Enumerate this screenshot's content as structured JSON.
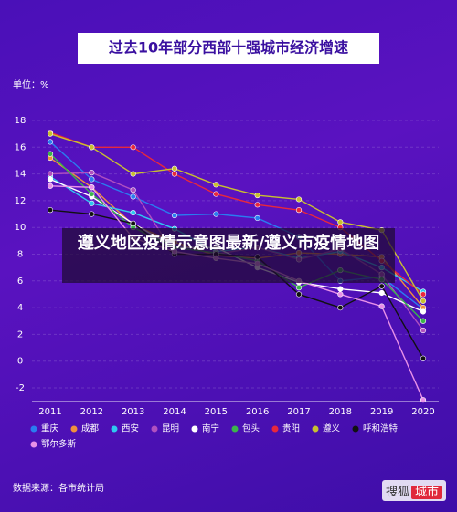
{
  "chart_data": {
    "type": "line",
    "title": "过去10年部分西部十强城市经济增速",
    "unit_label": "单位：%",
    "source": "数据来源：各市统计局",
    "x": [
      "2011",
      "2012",
      "2013",
      "2014",
      "2015",
      "2016",
      "2017",
      "2018",
      "2019",
      "2020"
    ],
    "ylim": [
      -3,
      19
    ],
    "yticks": [
      -2,
      0,
      2,
      4,
      6,
      8,
      10,
      12,
      14,
      16,
      18
    ],
    "grid": true,
    "series": [
      {
        "name": "重庆",
        "color": "#2a7cf0",
        "values": [
          16.4,
          13.6,
          12.3,
          10.9,
          11.0,
          10.7,
          9.3,
          6.0,
          6.3,
          3.9
        ]
      },
      {
        "name": "成都",
        "color": "#f0903c",
        "values": [
          15.2,
          13.0,
          10.2,
          8.9,
          7.9,
          7.7,
          8.1,
          8.0,
          7.8,
          4.0
        ]
      },
      {
        "name": "西安",
        "color": "#2ec8f0",
        "values": [
          13.8,
          11.8,
          11.1,
          9.9,
          8.2,
          8.5,
          7.7,
          8.2,
          7.0,
          5.2
        ]
      },
      {
        "name": "昆明",
        "color": "#b050c0",
        "values": [
          14.0,
          14.1,
          12.8,
          8.0,
          8.0,
          8.5,
          7.6,
          8.4,
          6.5,
          2.3
        ]
      },
      {
        "name": "南宁",
        "color": "#ffffff",
        "values": [
          13.6,
          12.3,
          10.3,
          8.5,
          8.5,
          7.0,
          5.9,
          5.4,
          5.1,
          3.7
        ]
      },
      {
        "name": "包头",
        "color": "#3cb44b",
        "values": [
          15.5,
          12.5,
          10.0,
          8.5,
          8.1,
          7.5,
          5.5,
          6.8,
          6.1,
          3.0
        ]
      },
      {
        "name": "贵阳",
        "color": "#e8283c",
        "values": [
          17.1,
          16.0,
          16.0,
          14.0,
          12.5,
          11.7,
          11.3,
          10.0,
          7.5,
          5.0
        ]
      },
      {
        "name": "遵义",
        "color": "#c8c030",
        "values": [
          17.0,
          16.0,
          14.0,
          14.4,
          13.2,
          12.4,
          12.1,
          10.4,
          9.8,
          4.5
        ]
      },
      {
        "name": "呼和浩特",
        "color": "#111111",
        "values": [
          11.3,
          11.0,
          10.3,
          8.0,
          8.0,
          7.8,
          5.0,
          4.0,
          5.6,
          0.2
        ]
      },
      {
        "name": "鄂尔多斯",
        "color": "#e890e8",
        "values": [
          13.1,
          13.0,
          9.2,
          8.2,
          7.7,
          7.3,
          6.0,
          5.0,
          4.1,
          -2.9
        ]
      }
    ]
  },
  "overlay_text": "遵义地区疫情示意图最新/遵义市疫情地图",
  "watermark": {
    "brand": "搜狐",
    "tag": "城市"
  }
}
